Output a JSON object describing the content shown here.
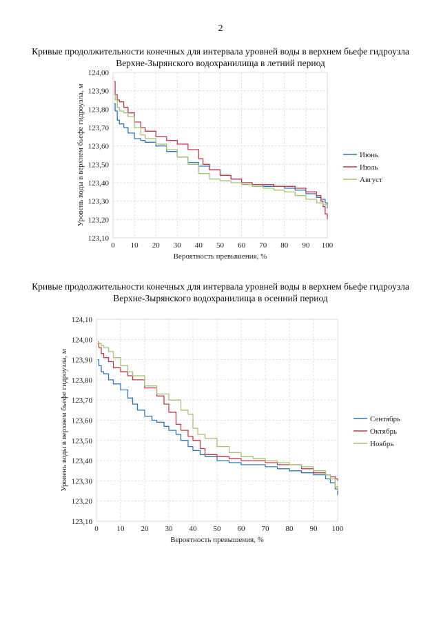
{
  "page": {
    "number": "2"
  },
  "charts": [
    {
      "title_line1": "Кривые продолжительности конечных для интервала уровней воды в верхнем бьефе гидроузла",
      "title_line2": "Верхне-Зырянского водохранилища в летний период"
    },
    {
      "title_line1": "Кривые продолжительности конечных для интервала уровней воды в верхнем бьефе гидроузла",
      "title_line2": "Верхне-Зырянского водохранилища в осенний период"
    }
  ],
  "chart_data": [
    {
      "type": "line",
      "title": "Кривые продолжительности конечных для интервала уровней воды в верхнем бьефе гидроузла Верхне-Зырянского водохранилища в летний период",
      "xlabel": "Вероятность превышения, %",
      "ylabel": "Уровень воды в верхнем бьефе гидроузла, м",
      "xlim": [
        0,
        100
      ],
      "ylim": [
        123.1,
        124.0
      ],
      "xticks": [
        "0",
        "10",
        "20",
        "30",
        "40",
        "50",
        "60",
        "70",
        "80",
        "90",
        "100"
      ],
      "yticks": [
        "123,10",
        "123,20",
        "123,30",
        "123,40",
        "123,50",
        "123,60",
        "123,70",
        "123,80",
        "123,90",
        "124,00"
      ],
      "grid": true,
      "legend_position": "right",
      "series": [
        {
          "name": "Июнь",
          "color": "#2e75b6",
          "x": [
            0.5,
            1,
            2,
            3,
            5,
            7,
            10,
            13,
            15,
            20,
            25,
            30,
            35,
            40,
            45,
            50,
            55,
            60,
            65,
            70,
            75,
            80,
            85,
            90,
            95,
            97,
            99,
            100
          ],
          "y": [
            123.83,
            123.79,
            123.74,
            123.72,
            123.7,
            123.67,
            123.64,
            123.63,
            123.62,
            123.6,
            123.57,
            123.54,
            123.51,
            123.49,
            123.47,
            123.44,
            123.42,
            123.4,
            123.39,
            123.38,
            123.38,
            123.37,
            123.36,
            123.34,
            123.32,
            123.31,
            123.29,
            123.26
          ]
        },
        {
          "name": "Июль",
          "color": "#c0394b",
          "x": [
            0.5,
            1,
            2,
            3,
            5,
            7,
            10,
            13,
            15,
            20,
            25,
            30,
            35,
            40,
            42,
            45,
            50,
            55,
            60,
            65,
            70,
            75,
            80,
            85,
            90,
            95,
            97,
            98,
            99,
            100
          ],
          "y": [
            123.95,
            123.88,
            123.85,
            123.84,
            123.81,
            123.78,
            123.73,
            123.7,
            123.68,
            123.65,
            123.63,
            123.61,
            123.58,
            123.53,
            123.5,
            123.47,
            123.44,
            123.42,
            123.4,
            123.39,
            123.39,
            123.38,
            123.38,
            123.37,
            123.35,
            123.33,
            123.3,
            123.27,
            123.23,
            123.2
          ]
        },
        {
          "name": "Август",
          "color": "#a4c172",
          "x": [
            0.5,
            1,
            2,
            3,
            5,
            7,
            10,
            13,
            15,
            20,
            25,
            30,
            35,
            40,
            45,
            50,
            55,
            60,
            65,
            70,
            75,
            80,
            85,
            90,
            95,
            98,
            100
          ],
          "y": [
            123.88,
            123.85,
            123.81,
            123.79,
            123.78,
            123.76,
            123.7,
            123.66,
            123.64,
            123.61,
            123.58,
            123.54,
            123.5,
            123.45,
            123.42,
            123.41,
            123.4,
            123.39,
            123.38,
            123.37,
            123.36,
            123.35,
            123.33,
            123.31,
            123.29,
            123.28,
            123.27
          ]
        }
      ]
    },
    {
      "type": "line",
      "title": "Кривые продолжительности конечных для интервала уровней воды в верхнем бьефе гидроузла Верхне-Зырянского водохранилища в осенний период",
      "xlabel": "Вероятность превышения, %",
      "ylabel": "Уровень воды в верхнем бьефе гидроузла, м",
      "xlim": [
        0,
        100
      ],
      "ylim": [
        123.1,
        124.1
      ],
      "xticks": [
        "0",
        "10",
        "20",
        "30",
        "40",
        "50",
        "60",
        "70",
        "80",
        "90",
        "100"
      ],
      "yticks": [
        "123,10",
        "123,20",
        "123,30",
        "123,40",
        "123,50",
        "123,60",
        "123,70",
        "123,80",
        "123,90",
        "124,00",
        "124,10"
      ],
      "grid": true,
      "legend_position": "right",
      "series": [
        {
          "name": "Сентябрь",
          "color": "#2e75b6",
          "x": [
            0.5,
            1,
            2,
            3,
            5,
            7,
            10,
            13,
            15,
            17,
            20,
            23,
            25,
            28,
            30,
            33,
            35,
            38,
            40,
            43,
            45,
            50,
            55,
            60,
            65,
            70,
            75,
            80,
            85,
            90,
            95,
            97,
            99,
            100
          ],
          "y": [
            123.9,
            123.87,
            123.84,
            123.83,
            123.8,
            123.78,
            123.75,
            123.71,
            123.68,
            123.65,
            123.62,
            123.6,
            123.59,
            123.57,
            123.55,
            123.53,
            123.5,
            123.47,
            123.45,
            123.43,
            123.42,
            123.4,
            123.39,
            123.38,
            123.38,
            123.37,
            123.36,
            123.35,
            123.34,
            123.33,
            123.31,
            123.29,
            123.26,
            123.23
          ]
        },
        {
          "name": "Октябрь",
          "color": "#c0394b",
          "x": [
            0.5,
            1,
            2,
            3,
            5,
            7,
            10,
            13,
            15,
            20,
            25,
            28,
            30,
            33,
            35,
            38,
            40,
            43,
            45,
            50,
            55,
            60,
            65,
            70,
            75,
            80,
            85,
            90,
            95,
            97,
            99,
            100
          ],
          "y": [
            123.98,
            123.96,
            123.93,
            123.91,
            123.89,
            123.86,
            123.84,
            123.82,
            123.8,
            123.76,
            123.72,
            123.68,
            123.64,
            123.58,
            123.55,
            123.52,
            123.5,
            123.46,
            123.43,
            123.42,
            123.41,
            123.4,
            123.4,
            123.39,
            123.38,
            123.38,
            123.36,
            123.34,
            123.33,
            123.32,
            123.31,
            123.3
          ]
        },
        {
          "name": "Ноябрь",
          "color": "#a4c172",
          "x": [
            0.5,
            1,
            2,
            3,
            5,
            7,
            10,
            13,
            15,
            20,
            25,
            30,
            35,
            38,
            40,
            42,
            45,
            50,
            55,
            60,
            65,
            70,
            75,
            80,
            85,
            90,
            95,
            97,
            99,
            100
          ],
          "y": [
            123.99,
            123.98,
            123.97,
            123.96,
            123.94,
            123.91,
            123.87,
            123.84,
            123.82,
            123.77,
            123.73,
            123.7,
            123.65,
            123.63,
            123.56,
            123.53,
            123.51,
            123.47,
            123.44,
            123.42,
            123.41,
            123.4,
            123.39,
            123.38,
            123.37,
            123.35,
            123.33,
            123.31,
            123.27,
            123.25
          ]
        }
      ]
    }
  ]
}
